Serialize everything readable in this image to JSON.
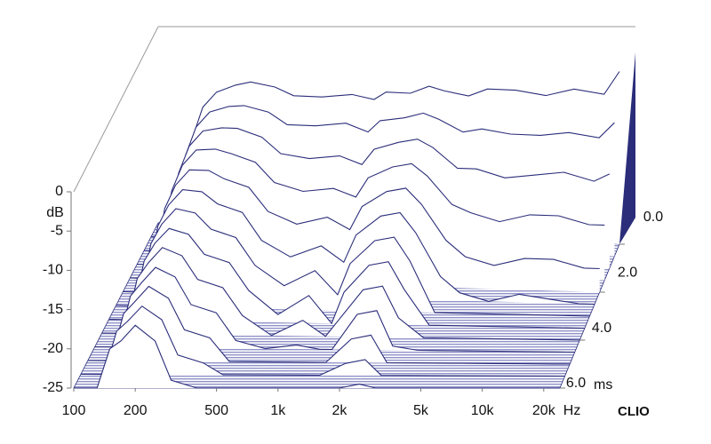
{
  "chart_data": {
    "type": "waterfall",
    "color": "#2b2d7a",
    "floor_color": "#8f92c8",
    "xscale": "log",
    "x_label": "Hz",
    "y_label": "dB",
    "z_label": "ms",
    "watermark": "CLIO",
    "xlim": [
      100,
      24000
    ],
    "xticks": [
      100,
      200,
      500,
      {
        "value": 1000,
        "label": "1k"
      },
      {
        "value": 2000,
        "label": "2k"
      },
      {
        "value": 5000,
        "label": "5k"
      },
      {
        "value": 10000,
        "label": "10k"
      },
      {
        "value": 20000,
        "label": "20k"
      }
    ],
    "ylim": [
      -25,
      0
    ],
    "yticks": [
      -25,
      -20,
      -15,
      -10,
      -5,
      0
    ],
    "zlim": [
      0,
      6
    ],
    "zticks": [
      {
        "value": 0,
        "label": "0.0"
      },
      {
        "value": 2,
        "label": "2.0"
      },
      {
        "value": 4,
        "label": "4.0"
      },
      {
        "value": 6,
        "label": "6.0"
      }
    ],
    "x": [
      100,
      130,
      150,
      170,
      200,
      250,
      300,
      400,
      500,
      700,
      1000,
      1300,
      1500,
      2000,
      2500,
      3000,
      4000,
      5000,
      7000,
      10000,
      14000,
      20000,
      24000
    ],
    "slices": [
      {
        "time": 0.0,
        "values": [
          -25,
          -25,
          -14,
          -10,
          -8,
          -7,
          -6.5,
          -7,
          -8,
          -8,
          -7.5,
          -8,
          -7,
          -7,
          -6,
          -6.5,
          -7,
          -6,
          -6,
          -6.5,
          -5.5,
          -6,
          -3
        ]
      },
      {
        "time": 0.5,
        "values": [
          -25,
          -25,
          -14.5,
          -10.8,
          -8.8,
          -8,
          -7.8,
          -8.5,
          -10,
          -10,
          -9.5,
          -10.5,
          -9,
          -8.5,
          -7.8,
          -8.5,
          -10,
          -9.5,
          -10,
          -10,
          -9.5,
          -10,
          -8
        ]
      },
      {
        "time": 1.0,
        "values": [
          -25,
          -25,
          -15,
          -11.5,
          -9.5,
          -9,
          -9,
          -10,
          -12,
          -12.5,
          -12,
          -13,
          -11,
          -10,
          -9.5,
          -10.5,
          -13,
          -13,
          -14,
          -13.5,
          -13,
          -14,
          -13
        ]
      },
      {
        "time": 1.5,
        "values": [
          -25,
          -25,
          -15.5,
          -12.2,
          -10.2,
          -10,
          -10.5,
          -11.5,
          -14,
          -15,
          -14.5,
          -15.5,
          -13,
          -11.5,
          -11,
          -12.5,
          -16,
          -17,
          -18,
          -17,
          -17,
          -18,
          -18
        ]
      },
      {
        "time": 2.0,
        "values": [
          -25,
          -25,
          -16,
          -13,
          -11,
          -11,
          -12,
          -13,
          -16,
          -17.5,
          -16.5,
          -18,
          -15,
          -13,
          -12.5,
          -14.5,
          -19,
          -21,
          -22,
          -21,
          -21,
          -22,
          -22
        ]
      },
      {
        "time": 2.5,
        "values": [
          -25,
          -25,
          -16.5,
          -13.8,
          -11.8,
          -12,
          -13.5,
          -14.5,
          -18,
          -20,
          -18.5,
          -20.5,
          -17,
          -14.5,
          -14,
          -16.5,
          -22,
          -24,
          -25,
          -24,
          -24.5,
          -25,
          -25
        ]
      },
      {
        "time": 3.0,
        "values": [
          -25,
          -25,
          -17,
          -14.5,
          -12.5,
          -13,
          -15,
          -16,
          -19.5,
          -22,
          -20,
          -23,
          -19,
          -16,
          -15.5,
          -18.5,
          -25,
          -25,
          -25,
          -25,
          -25,
          -25,
          -25
        ]
      },
      {
        "time": 3.5,
        "values": [
          -25,
          -25,
          -17.5,
          -15.2,
          -13.3,
          -14,
          -16.5,
          -17.5,
          -21,
          -24,
          -21.5,
          -25,
          -21,
          -17.5,
          -17,
          -20.5,
          -25,
          -25,
          -25,
          -25,
          -25,
          -25,
          -25
        ]
      },
      {
        "time": 4.0,
        "values": [
          -25,
          -25,
          -18,
          -16,
          -14,
          -15,
          -18,
          -19,
          -22.5,
          -25,
          -23,
          -25,
          -23,
          -19,
          -18.5,
          -22.5,
          -25,
          -25,
          -25,
          -25,
          -25,
          -25,
          -25
        ]
      },
      {
        "time": 4.5,
        "values": [
          -25,
          -25,
          -18.5,
          -16.8,
          -14.8,
          -16,
          -19.5,
          -20.5,
          -24,
          -25,
          -24.5,
          -25,
          -25,
          -20.5,
          -20,
          -24.5,
          -25,
          -25,
          -25,
          -25,
          -25,
          -25,
          -25
        ]
      },
      {
        "time": 5.0,
        "values": [
          -25,
          -25,
          -19,
          -17.5,
          -15.5,
          -17,
          -21,
          -22,
          -25,
          -25,
          -25,
          -25,
          -25,
          -22,
          -21.5,
          -25,
          -25,
          -25,
          -25,
          -25,
          -25,
          -25,
          -25
        ]
      },
      {
        "time": 5.5,
        "values": [
          -25,
          -25,
          -19.5,
          -18.2,
          -16.3,
          -18,
          -22.5,
          -23.5,
          -25,
          -25,
          -25,
          -25,
          -25,
          -23.5,
          -23,
          -25,
          -25,
          -25,
          -25,
          -25,
          -25,
          -25,
          -25
        ]
      },
      {
        "time": 6.0,
        "values": [
          -25,
          -25,
          -20,
          -19,
          -17,
          -19,
          -24,
          -25,
          -25,
          -25,
          -25,
          -25,
          -25,
          -25,
          -24.5,
          -25,
          -25,
          -25,
          -25,
          -25,
          -25,
          -25,
          -25
        ]
      }
    ]
  }
}
